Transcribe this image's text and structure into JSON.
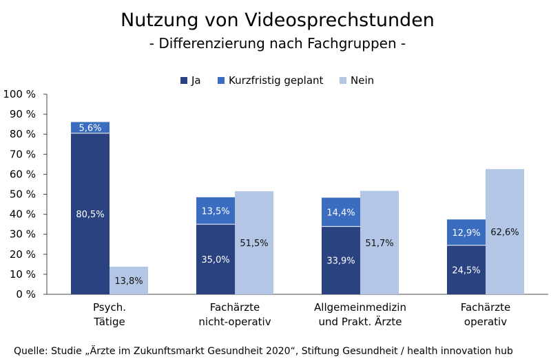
{
  "chart_data": {
    "type": "bar",
    "title": "Nutzung von Videosprechstunden",
    "subtitle": "- Differenzierung nach Fachgruppen -",
    "categories": [
      [
        "Psych.",
        "Tätige"
      ],
      [
        "Fachärzte",
        "nicht-operativ"
      ],
      [
        "Allgemeinmedizin",
        "und Prakt. Ärzte"
      ],
      [
        "Fachärzte",
        "operativ"
      ]
    ],
    "series": [
      {
        "name": "Ja",
        "values": [
          80.5,
          35.0,
          33.9,
          24.5
        ],
        "labels": [
          "80,5%",
          "35,0%",
          "33,9%",
          "24,5%"
        ],
        "stack": "ja",
        "color": "#2a4380"
      },
      {
        "name": "Kurzfristig geplant",
        "values": [
          5.6,
          13.5,
          14.4,
          12.9
        ],
        "labels": [
          "5,6%",
          "13,5%",
          "14,4%",
          "12,9%"
        ],
        "stack": "ja",
        "color": "#3a6dc0"
      },
      {
        "name": "Nein",
        "values": [
          13.8,
          51.5,
          51.7,
          62.6
        ],
        "labels": [
          "13,8%",
          "51,5%",
          "51,7%",
          "62,6%"
        ],
        "stack": "nein",
        "color": "#b3c6e5"
      }
    ],
    "yticks": [
      "0 %",
      "10 %",
      "20 %",
      "30 %",
      "40 %",
      "50 %",
      "60 %",
      "70 %",
      "80 %",
      "90 %",
      "100 %"
    ],
    "ylim": [
      0,
      100
    ],
    "legend_position": "top",
    "grid": false,
    "source": "Quelle: Studie „Ärzte im Zukunftsmarkt Gesundheit 2020“, Stiftung Gesundheit / health innovation hub"
  }
}
